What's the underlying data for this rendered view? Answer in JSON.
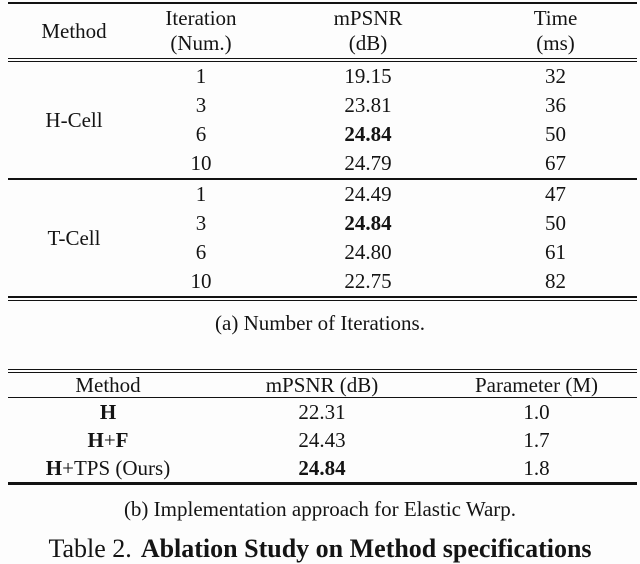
{
  "page": {
    "background": "#fdfdfd",
    "text_color": "#141414",
    "rule_color": "#121212"
  },
  "table_a": {
    "header": {
      "method": "Method",
      "iteration_line1": "Iteration",
      "iteration_line2": "(Num.)",
      "mpsnr_line1": "mPSNR",
      "mpsnr_line2": "(dB)",
      "time_line1": "Time",
      "time_line2": "(ms)"
    },
    "groups": [
      {
        "method": "H-Cell",
        "rows": [
          {
            "iteration": "1",
            "mpsnr": "19.15",
            "mpsnr_bold": false,
            "time": "32"
          },
          {
            "iteration": "3",
            "mpsnr": "23.81",
            "mpsnr_bold": false,
            "time": "36"
          },
          {
            "iteration": "6",
            "mpsnr": "24.84",
            "mpsnr_bold": true,
            "time": "50"
          },
          {
            "iteration": "10",
            "mpsnr": "24.79",
            "mpsnr_bold": false,
            "time": "67"
          }
        ]
      },
      {
        "method": "T-Cell",
        "rows": [
          {
            "iteration": "1",
            "mpsnr": "24.49",
            "mpsnr_bold": false,
            "time": "47"
          },
          {
            "iteration": "3",
            "mpsnr": "24.84",
            "mpsnr_bold": true,
            "time": "50"
          },
          {
            "iteration": "6",
            "mpsnr": "24.80",
            "mpsnr_bold": false,
            "time": "61"
          },
          {
            "iteration": "10",
            "mpsnr": "22.75",
            "mpsnr_bold": false,
            "time": "82"
          }
        ]
      }
    ],
    "caption": "(a) Number of Iterations."
  },
  "table_b": {
    "header": {
      "method": "Method",
      "mpsnr": "mPSNR (dB)",
      "parameter": "Parameter (M)"
    },
    "rows": [
      {
        "method_parts": [
          {
            "text": "H",
            "bold": true
          }
        ],
        "mpsnr": "22.31",
        "mpsnr_bold": false,
        "parameter": "1.0"
      },
      {
        "method_parts": [
          {
            "text": "H",
            "bold": true
          },
          {
            "text": " + ",
            "bold": false
          },
          {
            "text": "F",
            "bold": true
          }
        ],
        "mpsnr": "24.43",
        "mpsnr_bold": false,
        "parameter": "1.7"
      },
      {
        "method_parts": [
          {
            "text": "H",
            "bold": true
          },
          {
            "text": "+TPS (Ours)",
            "bold": false
          }
        ],
        "mpsnr": "24.84",
        "mpsnr_bold": true,
        "parameter": "1.8"
      }
    ],
    "caption": "(b) Implementation approach for Elastic Warp."
  },
  "figure_caption": {
    "label": "Table 2.",
    "title": "Ablation Study on Method specifications"
  }
}
